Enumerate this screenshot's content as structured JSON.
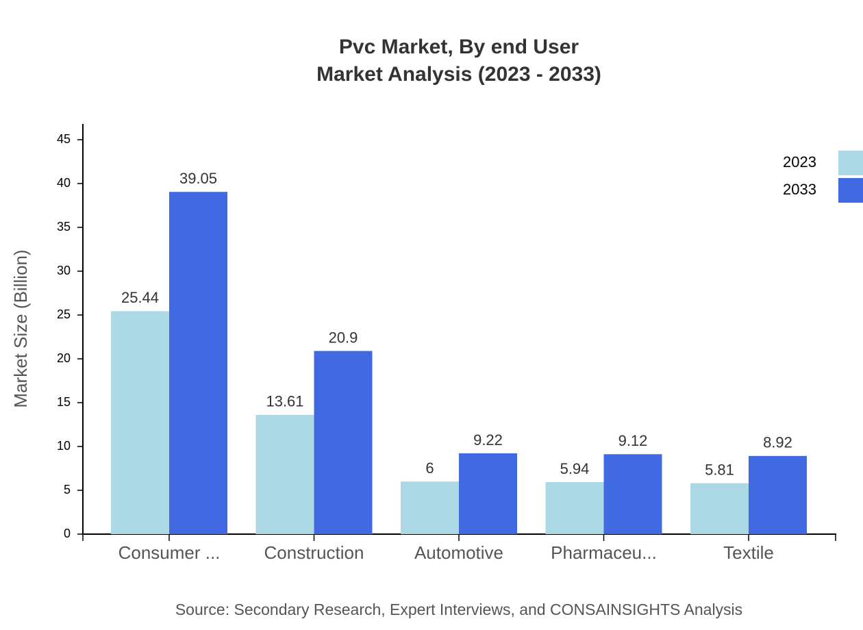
{
  "chart_data": {
    "type": "bar",
    "title": "Pvc Market, By end User",
    "subtitle": "Market Analysis (2023 - 2033)",
    "y_label": "Market Size (Billion)",
    "source": "Source: Secondary Research, Expert Interviews, and CONSAINSIGHTS Analysis",
    "categories": [
      "Consumer ...",
      "Construction",
      "Automotive",
      "Pharmaceu...",
      "Textile"
    ],
    "series": [
      {
        "name": "2023",
        "color": "#add8e6",
        "values": [
          25.44,
          13.61,
          6,
          5.94,
          5.81
        ]
      },
      {
        "name": "2033",
        "color": "#4169e1",
        "values": [
          39.05,
          20.9,
          9.22,
          9.12,
          8.92
        ]
      }
    ],
    "ylim": [
      0,
      46.8
    ],
    "yticks": [
      0,
      5,
      10,
      15,
      20,
      25,
      30,
      35,
      40,
      45
    ],
    "legend": "top-right"
  }
}
